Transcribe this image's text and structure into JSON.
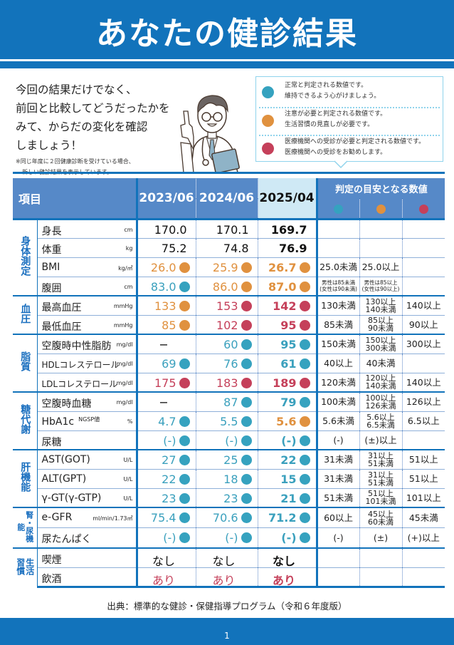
{
  "header": {
    "title": "あなたの健診結果"
  },
  "intro": {
    "lines": [
      "今回の結果だけでなく、",
      "前回と比較してどうだったかを",
      "みて、からだの変化を確認",
      "しましょう！"
    ],
    "note_line1": "※同じ年度に２回健康診断を受けている場合、",
    "note_line2": "新しい健診結果を表示しています。"
  },
  "illustration": {
    "icon": "doctor-pointing-illustration"
  },
  "legend": {
    "items": [
      {
        "color": "#35a2bf",
        "line1": "正常と判定される数値です。",
        "line2": "維持できるよう心がけましょう。"
      },
      {
        "color": "#e0913f",
        "line1": "注意が必要と判定される数値です。",
        "line2": "生活習慣の見直しが必要です。"
      },
      {
        "color": "#c5405a",
        "line1": "医療機関への受診が必要と判定される数値です。",
        "line2": "医療機関への受診をお勧めします。"
      }
    ]
  },
  "colors": {
    "normal": "#35a2bf",
    "caution": "#e0913f",
    "abnormal": "#c5405a",
    "brand": "#1273bb",
    "header_bg": "#5689c8"
  },
  "table": {
    "header": {
      "item_label": "項目",
      "years": [
        "2023/06",
        "2024/06",
        "2025/04"
      ],
      "criteria_title": "判定の目安となる数値"
    },
    "categories": {
      "body": "身体測定",
      "bp": "血圧",
      "lipid": "脂質",
      "glucose": "糖代謝",
      "liver": "肝機能",
      "kidney": "腎・尿機能",
      "lifestyle": "生活習慣"
    },
    "rows": [
      {
        "name": "身長",
        "unit": "cm",
        "v": [
          "170.0",
          "170.1",
          "169.7"
        ],
        "s": [
          "none",
          "none",
          "none"
        ],
        "crit": [
          "",
          "",
          ""
        ]
      },
      {
        "name": "体重",
        "unit": "kg",
        "v": [
          "75.2",
          "74.8",
          "76.9"
        ],
        "s": [
          "none",
          "none",
          "none"
        ],
        "crit": [
          "",
          "",
          ""
        ]
      },
      {
        "name": "BMI",
        "unit": "kg/㎡",
        "v": [
          "26.0",
          "25.9",
          "26.7"
        ],
        "s": [
          "orange",
          "orange",
          "orange"
        ],
        "crit": [
          "25.0未満",
          "25.0以上",
          ""
        ]
      },
      {
        "name": "腹囲",
        "unit": "cm",
        "v": [
          "83.0",
          "86.0",
          "87.0"
        ],
        "s": [
          "blue",
          "orange",
          "orange"
        ],
        "crit": [
          "男性は85未満 (女性は90未満)",
          "男性は85以上 (女性は90以上)",
          ""
        ]
      },
      {
        "name": "最高血圧",
        "unit": "mmHg",
        "v": [
          "133",
          "153",
          "142"
        ],
        "s": [
          "orange",
          "red",
          "red"
        ],
        "crit": [
          "130未満",
          "130以上 140未満",
          "140以上"
        ]
      },
      {
        "name": "最低血圧",
        "unit": "mmHg",
        "v": [
          "85",
          "102",
          "95"
        ],
        "s": [
          "orange",
          "red",
          "red"
        ],
        "crit": [
          "85未満",
          "85以上 90未満",
          "90以上"
        ]
      },
      {
        "name": "空腹時中性脂肪",
        "unit": "mg/dl",
        "v": [
          "−",
          "60",
          "95"
        ],
        "s": [
          "none",
          "blue",
          "blue"
        ],
        "crit": [
          "150未満",
          "150以上 300未満",
          "300以上"
        ]
      },
      {
        "name": "HDLコレステロール",
        "unit": "mg/dl",
        "v": [
          "69",
          "76",
          "61"
        ],
        "s": [
          "blue",
          "blue",
          "blue"
        ],
        "crit": [
          "40以上",
          "40未満",
          ""
        ]
      },
      {
        "name": "LDLコレステロール",
        "unit": "mg/dl",
        "v": [
          "175",
          "183",
          "189"
        ],
        "s": [
          "red",
          "red",
          "red"
        ],
        "crit": [
          "120未満",
          "120以上 140未満",
          "140以上"
        ]
      },
      {
        "name": "空腹時血糖",
        "unit": "mg/dl",
        "v": [
          "−",
          "87",
          "79"
        ],
        "s": [
          "none",
          "blue",
          "blue"
        ],
        "crit": [
          "100未満",
          "100以上 126未満",
          "126以上"
        ]
      },
      {
        "name": "HbA1c",
        "name_suffix": "NGSP値",
        "unit": "%",
        "v": [
          "4.7",
          "5.5",
          "5.6"
        ],
        "s": [
          "blue",
          "blue",
          "orange"
        ],
        "crit": [
          "5.6未満",
          "5.6以上 6.5未満",
          "6.5以上"
        ]
      },
      {
        "name": "尿糖",
        "unit": "",
        "v": [
          "(-)",
          "(-)",
          "(-)"
        ],
        "s": [
          "blue",
          "blue",
          "blue"
        ],
        "crit": [
          "(-)",
          "(±)以上",
          ""
        ]
      },
      {
        "name": "AST(GOT)",
        "unit": "U/L",
        "v": [
          "27",
          "25",
          "22"
        ],
        "s": [
          "blue",
          "blue",
          "blue"
        ],
        "crit": [
          "31未満",
          "31以上 51未満",
          "51以上"
        ]
      },
      {
        "name": "ALT(GPT)",
        "unit": "U/L",
        "v": [
          "22",
          "18",
          "15"
        ],
        "s": [
          "blue",
          "blue",
          "blue"
        ],
        "crit": [
          "31未満",
          "31以上 51未満",
          "51以上"
        ]
      },
      {
        "name": "γ-GT(γ-GTP)",
        "unit": "U/L",
        "v": [
          "23",
          "23",
          "21"
        ],
        "s": [
          "blue",
          "blue",
          "blue"
        ],
        "crit": [
          "51未満",
          "51以上 101未満",
          "101以上"
        ]
      },
      {
        "name": "e-GFR",
        "unit": "ml/min/1.73㎡",
        "v": [
          "75.4",
          "70.6",
          "71.2"
        ],
        "s": [
          "blue",
          "blue",
          "blue"
        ],
        "crit": [
          "60以上",
          "45以上 60未満",
          "45未満"
        ]
      },
      {
        "name": "尿たんぱく",
        "unit": "",
        "v": [
          "(-)",
          "(-)",
          "(-)"
        ],
        "s": [
          "blue",
          "blue",
          "blue"
        ],
        "crit": [
          "(-)",
          "(±)",
          "(+)以上"
        ]
      },
      {
        "name": "喫煙",
        "unit": "",
        "v": [
          "なし",
          "なし",
          "なし"
        ],
        "s": [
          "none",
          "none",
          "none"
        ],
        "crit": [
          "",
          "",
          ""
        ]
      },
      {
        "name": "飲酒",
        "unit": "",
        "v": [
          "あり",
          "あり",
          "あり"
        ],
        "s": [
          "none",
          "none",
          "none"
        ],
        "crit": [
          "",
          "",
          ""
        ]
      }
    ]
  },
  "footer": {
    "source": "出典：標準的な健診・保健指導プログラム（令和６年度版）",
    "page_number": "1"
  }
}
